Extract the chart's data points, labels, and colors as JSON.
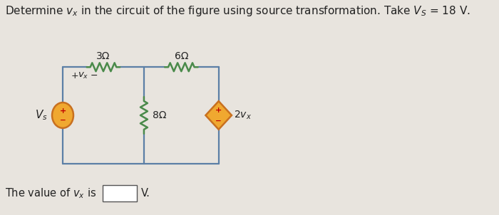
{
  "title_part1": "Determine ",
  "title_vx": "v",
  "title_x": "x",
  "title_part2": " in the circuit of the figure using source transformation. Take ",
  "title_Vs": "V",
  "title_s": "S",
  "title_part3": " = 18 V.",
  "title_fontsize": 11.5,
  "bg_color": "#e8e4de",
  "wire_color": "#5b7fa6",
  "resistor_color": "#4a8a4a",
  "source_fill": "#f0a830",
  "source_outline": "#c87020",
  "dep_source_fill": "#f0a830",
  "dep_source_outline": "#c87020",
  "plus_minus_color": "#c00000",
  "text_color": "#222222",
  "bottom_text_1": "The value of ",
  "bottom_text_vx": "v",
  "bottom_text_x": "x",
  "bottom_text_2": " is",
  "bottom_text_3": " V."
}
